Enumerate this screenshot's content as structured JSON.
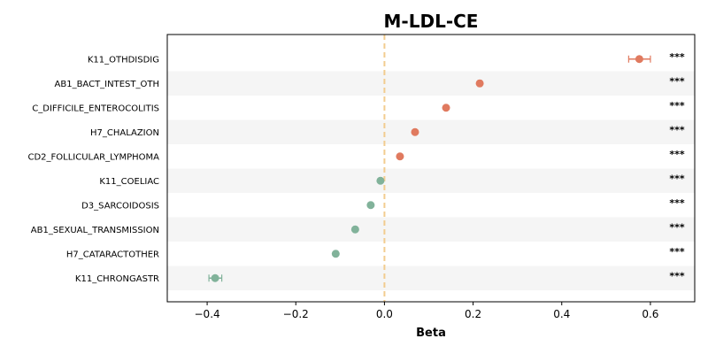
{
  "chart_data": {
    "type": "scatter",
    "title": "M-LDL-CE",
    "xlabel": "Beta",
    "ylabel": "",
    "xlim": [
      -0.49,
      0.7
    ],
    "xticks": [
      -0.4,
      -0.2,
      0.0,
      0.2,
      0.4,
      0.6
    ],
    "xtick_labels": [
      "−0.4",
      "−0.2",
      "0.0",
      "0.2",
      "0.4",
      "0.6"
    ],
    "reference_line": 0,
    "grid": false,
    "categories": [
      "K11_OTHDISDIG",
      "AB1_BACT_INTEST_OTH",
      "C_DIFFICILE_ENTEROCOLITIS",
      "H7_CHALAZION",
      "CD2_FOLLICULAR_LYMPHOMA",
      "K11_COELIAC",
      "D3_SARCOIDOSIS",
      "AB1_SEXUAL_TRANSMISSION",
      "H7_CATARACTOTHER",
      "K11_CHRONGASTR"
    ],
    "values": [
      0.575,
      0.215,
      0.139,
      0.069,
      0.035,
      -0.009,
      -0.031,
      -0.066,
      -0.11,
      -0.382
    ],
    "ci_low": [
      0.551,
      0.211,
      0.136,
      0.066,
      0.032,
      -0.012,
      -0.034,
      -0.069,
      -0.113,
      -0.396
    ],
    "ci_high": [
      0.6,
      0.219,
      0.142,
      0.072,
      0.038,
      -0.006,
      -0.028,
      -0.063,
      -0.107,
      -0.367
    ],
    "significance": [
      "***",
      "***",
      "***",
      "***",
      "***",
      "***",
      "***",
      "***",
      "***",
      "***"
    ],
    "colors": {
      "positive": "#e07a5f",
      "negative": "#81b29a",
      "reference": "#f2cc8f",
      "band": "#f5f5f5"
    }
  }
}
